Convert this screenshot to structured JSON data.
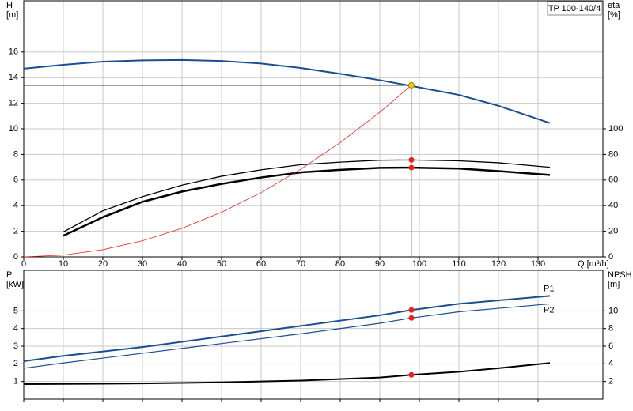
{
  "chart_data": [
    {
      "type": "line",
      "tag": "TP 100-140/4",
      "xlabel": "Q [m³/h]",
      "ylabel": [
        "H",
        "[m]"
      ],
      "y2label": [
        "eta",
        "[%]"
      ],
      "xlim": [
        0,
        146.4
      ],
      "xticks": [
        0,
        10,
        20,
        30,
        40,
        50,
        60,
        70,
        80,
        90,
        100,
        110,
        120,
        130
      ],
      "ylim": [
        0,
        20
      ],
      "yticks": [
        0,
        2,
        4,
        6,
        8,
        10,
        12,
        14,
        16
      ],
      "y2lim": [
        0,
        200
      ],
      "y2ticks": [
        0,
        20,
        40,
        60,
        80,
        100
      ],
      "grid": true,
      "xtick_labels": true,
      "series": [
        {
          "color": "#1a4f8f",
          "line_width": 2,
          "x": [
            0,
            10,
            20,
            30,
            40,
            50,
            60,
            70,
            80,
            90,
            98,
            110,
            120,
            133
          ],
          "values": [
            14.7,
            15.0,
            15.25,
            15.35,
            15.38,
            15.3,
            15.1,
            14.75,
            14.3,
            13.8,
            13.35,
            12.65,
            11.8,
            10.45
          ]
        },
        {
          "color": "#000000",
          "line_width": 1.3,
          "axis": "y2",
          "x": [
            10,
            20,
            30,
            40,
            50,
            60,
            70,
            80,
            90,
            98,
            110,
            120,
            133
          ],
          "values": [
            19.5,
            36,
            47,
            56,
            63,
            68,
            72,
            74,
            75.5,
            75.7,
            75,
            73.5,
            70
          ]
        },
        {
          "color": "#000000",
          "line_width": 2.5,
          "axis": "y2",
          "x": [
            10,
            20,
            30,
            40,
            50,
            60,
            70,
            80,
            90,
            98,
            110,
            120,
            133
          ],
          "values": [
            16.5,
            31,
            43,
            51,
            57,
            62,
            66,
            68,
            69.5,
            69.7,
            69,
            67,
            64
          ]
        },
        {
          "color": "#e8221b",
          "line_width": 0.8,
          "x": [
            0,
            10,
            20,
            30,
            40,
            50,
            60,
            70,
            80,
            90,
            98
          ],
          "values": [
            0,
            0.14,
            0.56,
            1.26,
            2.23,
            3.49,
            5.02,
            6.84,
            8.93,
            11.3,
            13.4
          ]
        }
      ],
      "ref_lines": [
        {
          "color": "#000000",
          "x": [
            0,
            98
          ],
          "values": [
            13.4,
            13.4
          ]
        },
        {
          "color": "#888888",
          "x": [
            98,
            98
          ],
          "values": [
            13.4,
            0
          ]
        }
      ],
      "points": [
        {
          "color": "#f5d000",
          "x": 98,
          "y": 13.4
        },
        {
          "color": "#e8221b",
          "x": 98,
          "y": 75.7,
          "axis": "y2"
        },
        {
          "color": "#e8221b",
          "x": 98,
          "y": 69.7,
          "axis": "y2"
        }
      ]
    },
    {
      "type": "line",
      "ylabel": [
        "P",
        "[kW]"
      ],
      "y2label": [
        "NPSH",
        "[m]"
      ],
      "xlim": [
        0,
        146.4
      ],
      "xticks": [
        0,
        10,
        20,
        30,
        40,
        50,
        60,
        70,
        80,
        90,
        100,
        110,
        120,
        130
      ],
      "ylim": [
        0,
        7.3
      ],
      "yticks": [
        1,
        2,
        3,
        4,
        5
      ],
      "y2lim": [
        0,
        14.6
      ],
      "y2ticks": [
        2,
        4,
        6,
        8,
        10
      ],
      "grid": true,
      "xtick_labels": false,
      "series": [
        {
          "name": "P1",
          "color": "#1a4f8f",
          "line_width": 2,
          "x": [
            0,
            10,
            30,
            50,
            70,
            90,
            98,
            110,
            133
          ],
          "values": [
            2.15,
            2.45,
            2.95,
            3.55,
            4.15,
            4.75,
            5.05,
            5.4,
            5.85
          ]
        },
        {
          "name": "P2",
          "color": "#1a4f8f",
          "line_width": 1.2,
          "x": [
            0,
            10,
            30,
            50,
            70,
            90,
            98,
            110,
            133
          ],
          "values": [
            1.75,
            2.05,
            2.6,
            3.15,
            3.7,
            4.3,
            4.6,
            4.95,
            5.4
          ]
        },
        {
          "color": "#000000",
          "line_width": 2,
          "axis": "y2",
          "x": [
            0,
            10,
            30,
            50,
            70,
            90,
            98,
            110,
            120,
            133
          ],
          "values": [
            1.7,
            1.72,
            1.78,
            1.9,
            2.1,
            2.45,
            2.75,
            3.1,
            3.5,
            4.1
          ]
        }
      ],
      "points": [
        {
          "color": "#e8221b",
          "x": 98,
          "y": 5.05
        },
        {
          "color": "#e8221b",
          "x": 98,
          "y": 4.6
        },
        {
          "color": "#e8221b",
          "x": 98,
          "y": 2.75,
          "axis": "y2"
        }
      ]
    }
  ]
}
